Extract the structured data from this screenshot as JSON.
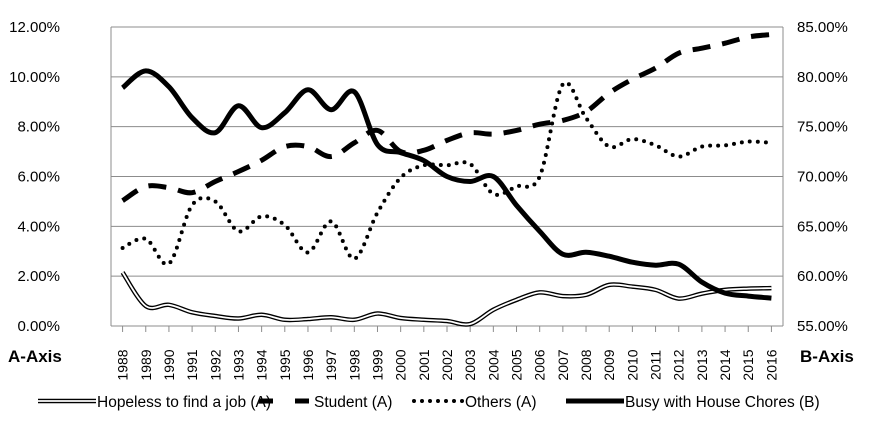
{
  "chart_data": {
    "type": "line",
    "left_axis_label": "A-Axis",
    "right_axis_label": "B-Axis",
    "left_ylim": [
      0,
      12
    ],
    "right_ylim": [
      55,
      85
    ],
    "left_ticks": [
      "0.00%",
      "2.00%",
      "4.00%",
      "6.00%",
      "8.00%",
      "10.00%",
      "12.00%"
    ],
    "right_ticks": [
      "55.00%",
      "60.00%",
      "65.00%",
      "70.00%",
      "75.00%",
      "80.00%",
      "85.00%"
    ],
    "grid": true,
    "legend_position": "bottom",
    "categories": [
      "1988",
      "1989",
      "1990",
      "1991",
      "1992",
      "1993",
      "1994",
      "1995",
      "1996",
      "1997",
      "1998",
      "1999",
      "2000",
      "2001",
      "2002",
      "2003",
      "2004",
      "2005",
      "2006",
      "2007",
      "2008",
      "2009",
      "2010",
      "2011",
      "2012",
      "2013",
      "2014",
      "2015",
      "2016"
    ],
    "series": [
      {
        "name": "Hopeless to find a job (A)",
        "axis": "A",
        "style": "double",
        "values": [
          2.15,
          0.8,
          0.85,
          0.55,
          0.4,
          0.3,
          0.45,
          0.25,
          0.28,
          0.35,
          0.25,
          0.5,
          0.32,
          0.25,
          0.2,
          0.08,
          0.65,
          1.05,
          1.35,
          1.2,
          1.25,
          1.65,
          1.58,
          1.45,
          1.1,
          1.3,
          1.45,
          1.5,
          1.52
        ]
      },
      {
        "name": "Student (A)",
        "axis": "A",
        "style": "dashed",
        "values": [
          5.03,
          5.6,
          5.55,
          5.35,
          5.8,
          6.2,
          6.65,
          7.2,
          7.2,
          6.8,
          7.35,
          7.85,
          7.0,
          7.05,
          7.45,
          7.75,
          7.7,
          7.85,
          8.1,
          8.25,
          8.6,
          9.35,
          9.9,
          10.35,
          10.95,
          11.15,
          11.35,
          11.6,
          11.7
        ]
      },
      {
        "name": "Others (A)",
        "axis": "A",
        "style": "dotted",
        "values": [
          3.13,
          3.5,
          2.5,
          4.85,
          5.0,
          3.8,
          4.4,
          4.05,
          2.95,
          4.2,
          2.7,
          4.55,
          5.95,
          6.45,
          6.45,
          6.5,
          5.3,
          5.6,
          6.0,
          9.7,
          8.35,
          7.2,
          7.5,
          7.25,
          6.8,
          7.2,
          7.25,
          7.4,
          7.35
        ]
      },
      {
        "name": "Busy with House Chores (B)",
        "axis": "B",
        "style": "solid",
        "values": [
          78.9,
          80.6,
          79.0,
          75.9,
          74.4,
          77.1,
          74.9,
          76.4,
          78.7,
          76.7,
          78.5,
          73.2,
          72.4,
          71.6,
          70.0,
          69.5,
          70.0,
          67.1,
          64.5,
          62.2,
          62.4,
          62.0,
          61.4,
          61.1,
          61.2,
          59.4,
          58.3,
          58.0,
          57.8
        ]
      }
    ]
  }
}
